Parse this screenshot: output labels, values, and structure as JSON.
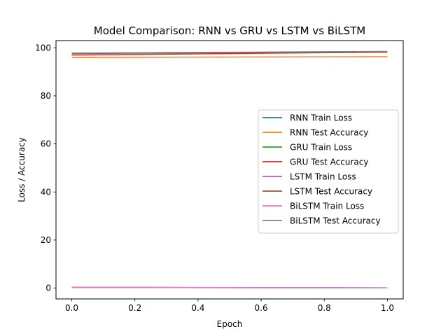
{
  "chart_data": {
    "type": "line",
    "title": "Model Comparison: RNN vs GRU vs LSTM vs BiLSTM",
    "xlabel": "Epoch",
    "ylabel": "Loss / Accuracy",
    "xlim": [
      -0.05,
      1.05
    ],
    "ylim": [
      -4.5,
      103
    ],
    "x_ticks": [
      0.0,
      0.2,
      0.4,
      0.6,
      0.8,
      1.0
    ],
    "x_tick_labels": [
      "0.0",
      "0.2",
      "0.4",
      "0.6",
      "0.8",
      "1.0"
    ],
    "y_ticks": [
      0,
      20,
      40,
      60,
      80,
      100
    ],
    "y_tick_labels": [
      "0",
      "20",
      "40",
      "60",
      "80",
      "100"
    ],
    "grid": false,
    "legend_position": "center-right",
    "x": [
      0,
      1
    ],
    "series": [
      {
        "name": "RNN Train Loss",
        "color": "#1f77b4",
        "values": [
          0.35,
          0.12
        ]
      },
      {
        "name": "RNN Test Accuracy",
        "color": "#ff7f0e",
        "values": [
          96.0,
          96.3
        ]
      },
      {
        "name": "GRU Train Loss",
        "color": "#2ca02c",
        "values": [
          0.3,
          0.08
        ]
      },
      {
        "name": "GRU Test Accuracy",
        "color": "#d62728",
        "values": [
          97.0,
          98.2
        ]
      },
      {
        "name": "LSTM Train Loss",
        "color": "#9467bd",
        "values": [
          0.32,
          0.08
        ]
      },
      {
        "name": "LSTM Test Accuracy",
        "color": "#8c564b",
        "values": [
          97.6,
          98.4
        ]
      },
      {
        "name": "BiLSTM Train Loss",
        "color": "#e377c2",
        "values": [
          0.35,
          0.1
        ]
      },
      {
        "name": "BiLSTM Test Accuracy",
        "color": "#7f7f7f",
        "values": [
          97.8,
          98.5
        ]
      }
    ]
  }
}
